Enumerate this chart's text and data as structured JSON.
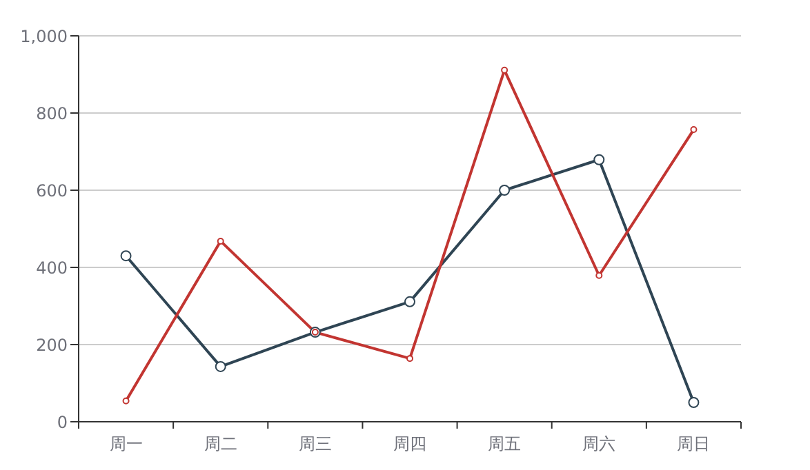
{
  "chart_data": {
    "type": "line",
    "categories": [
      "周一",
      "周二",
      "周三",
      "周四",
      "周五",
      "周六",
      "周日"
    ],
    "series": [
      {
        "color": "#2f4554",
        "values": [
          430,
          143,
          232,
          311,
          600,
          679,
          50
        ]
      },
      {
        "color": "#c23531",
        "values": [
          54,
          468,
          232,
          164,
          911,
          379,
          757
        ]
      }
    ],
    "ylim": [
      0,
      1000
    ],
    "yticks": [
      0,
      200,
      400,
      600,
      800,
      {
        "value": 1000,
        "label": "1,000"
      }
    ],
    "grid": "y",
    "marker": "circle",
    "line_style": "solid"
  }
}
